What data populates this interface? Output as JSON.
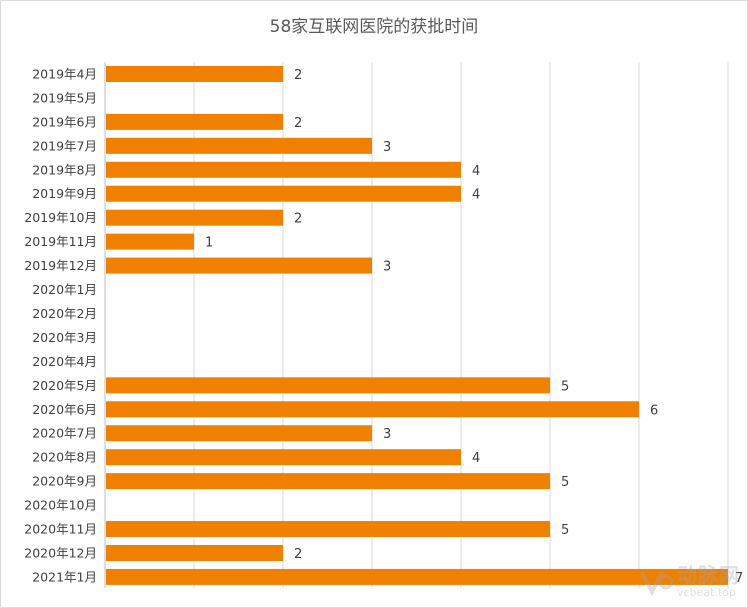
{
  "chart_data": {
    "type": "bar",
    "orientation": "horizontal",
    "title": "58家互联网医院的获批时间",
    "categories": [
      "2019年4月",
      "2019年5月",
      "2019年6月",
      "2019年7月",
      "2019年8月",
      "2019年9月",
      "2019年10月",
      "2019年11月",
      "2019年12月",
      "2020年1月",
      "2020年2月",
      "2020年3月",
      "2020年4月",
      "2020年5月",
      "2020年6月",
      "2020年7月",
      "2020年8月",
      "2020年9月",
      "2020年10月",
      "2020年11月",
      "2020年12月",
      "2021年1月"
    ],
    "values": [
      2,
      null,
      2,
      3,
      4,
      4,
      2,
      1,
      3,
      null,
      null,
      null,
      null,
      5,
      6,
      3,
      4,
      5,
      null,
      5,
      2,
      7
    ],
    "xlim": [
      0,
      7
    ],
    "gridlines": "vertical",
    "data_labels": true,
    "legend": "none",
    "bar_color": "#F08000",
    "grid_color": "#d9d9d9"
  },
  "watermark": {
    "main": "动脉网",
    "sub": "vcbeat.top",
    "icon": "vcbeat-logo-icon"
  }
}
